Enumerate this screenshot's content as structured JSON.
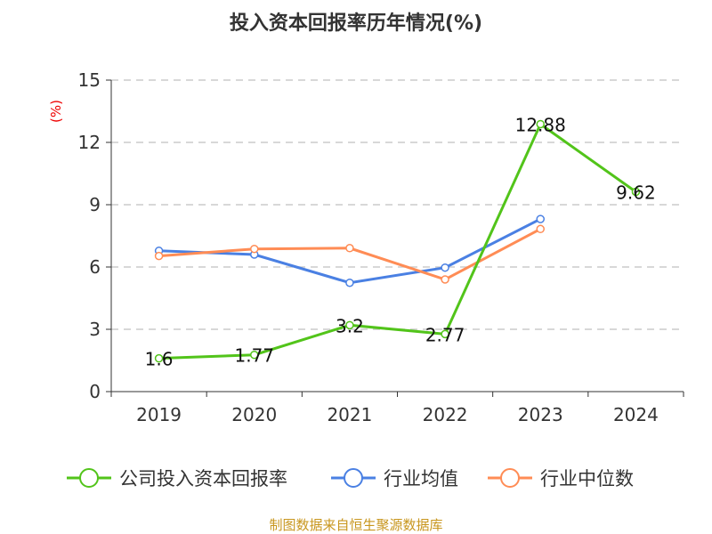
{
  "chart_data": {
    "type": "line",
    "title": "投入资本回报率历年情况(%)",
    "ylabel": "(%)",
    "xlabel": "",
    "categories": [
      "2019",
      "2020",
      "2021",
      "2022",
      "2023",
      "2024"
    ],
    "ylim": [
      0,
      15
    ],
    "yticks": [
      0,
      3,
      6,
      9,
      12,
      15
    ],
    "grid": true,
    "legend_placement": "bottom",
    "series": [
      {
        "name": "公司投入资本回报率",
        "color": "#52c41a",
        "values": [
          1.6,
          1.77,
          3.2,
          2.77,
          12.88,
          9.62
        ],
        "labels": [
          "1.6",
          "1.77",
          "3.2",
          "2.77",
          "12.88",
          "9.62"
        ]
      },
      {
        "name": "行业均值",
        "color": "#4a80e3",
        "values": [
          6.78,
          6.6,
          5.24,
          5.97,
          8.31,
          null
        ]
      },
      {
        "name": "行业中位数",
        "color": "#ff8c55",
        "values": [
          6.53,
          6.87,
          6.91,
          5.4,
          7.83,
          null
        ]
      }
    ]
  },
  "footer": {
    "source": "制图数据来自恒生聚源数据库",
    "color": "#c8961e"
  }
}
